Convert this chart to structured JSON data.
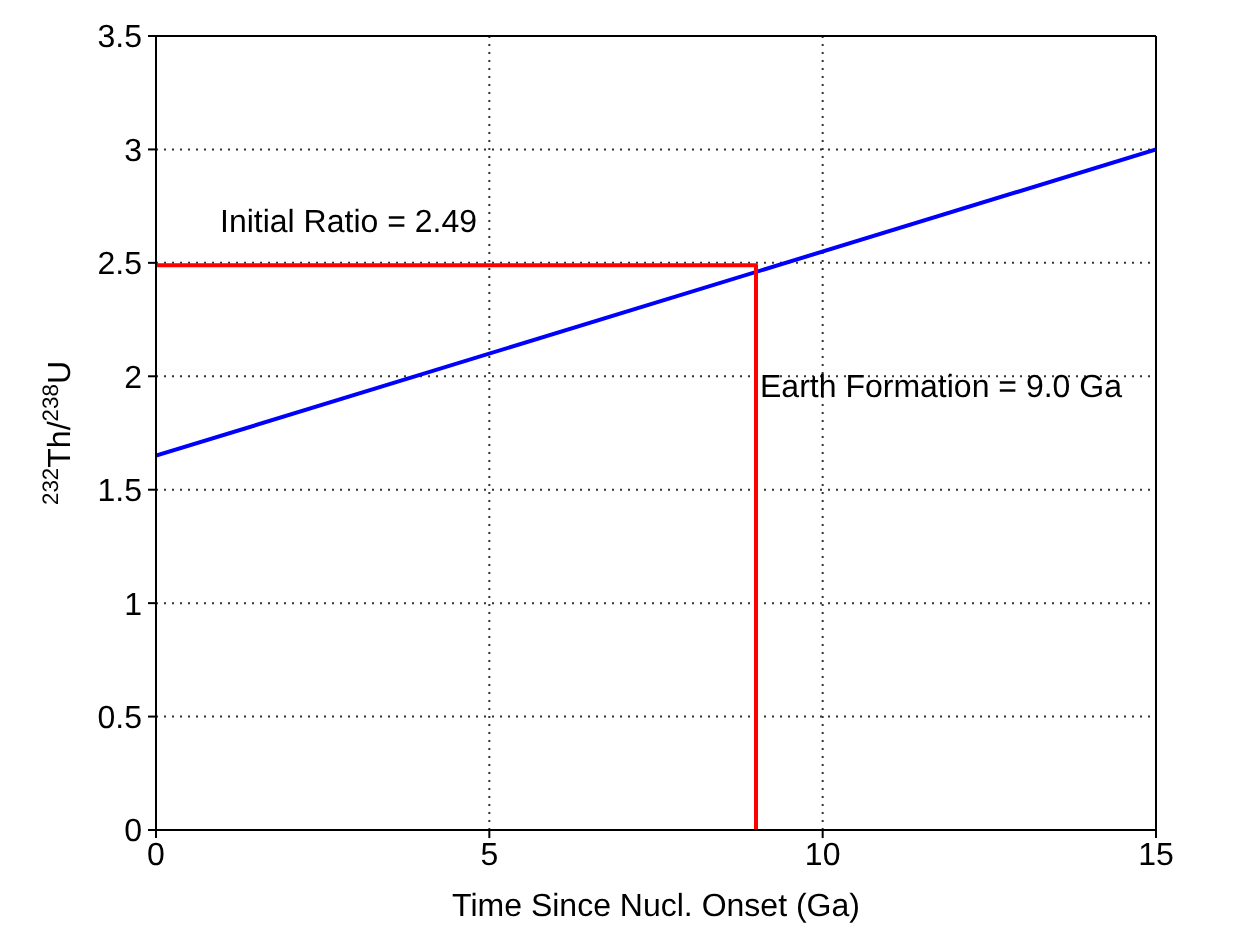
{
  "chart_data": {
    "type": "line",
    "xlabel": "Time Since Nucl. Onset (Ga)",
    "ylabel": "$^{232}$Th/$^{238}$U",
    "series": [
      {
        "color": "#0000ff",
        "x": [
          0,
          15
        ],
        "values": [
          1.65,
          3.0
        ]
      },
      {
        "color": "#ff0000",
        "x": [
          0,
          9,
          9
        ],
        "values": [
          2.49,
          2.49,
          0
        ]
      }
    ],
    "xlim": [
      0,
      15
    ],
    "xticks": [
      0,
      5,
      10,
      15
    ],
    "ylim": [
      0,
      3.5
    ],
    "yticks": [
      0,
      0.5,
      1,
      1.5,
      2,
      2.5,
      3,
      3.5
    ],
    "grid": true,
    "marker": "none",
    "line_style": "solid",
    "annotations": [
      "Initial Ratio = 2.49",
      {
        "text": "Earth Formation = 9.0 Ga",
        "x": 9,
        "y": 1.96
      }
    ]
  }
}
